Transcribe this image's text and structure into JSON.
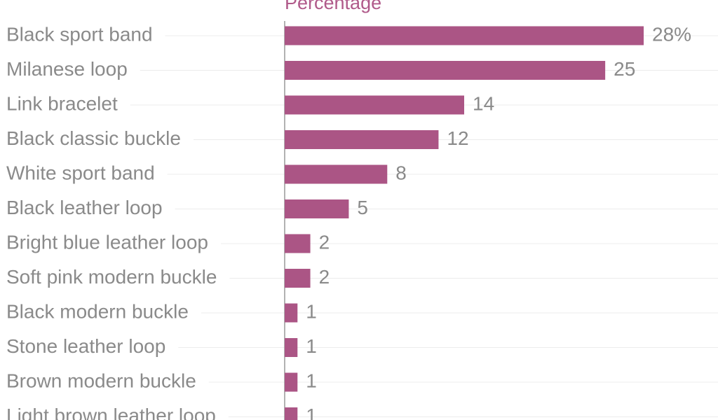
{
  "chart_data": {
    "type": "bar",
    "orientation": "horizontal",
    "title": "Percentage",
    "categories": [
      "Black sport band",
      "Milanese loop",
      "Link bracelet",
      "Black classic buckle",
      "White sport band",
      "Black leather loop",
      "Bright blue leather loop",
      "Soft pink modern buckle",
      "Black modern buckle",
      "Stone leather loop",
      "Brown modern buckle",
      "Light brown leather loop"
    ],
    "values": [
      28,
      25,
      14,
      12,
      8,
      5,
      2,
      2,
      1,
      1,
      1,
      1
    ],
    "value_labels": [
      "28%",
      "25",
      "14",
      "12",
      "8",
      "5",
      "2",
      "2",
      "1",
      "1",
      "1",
      "1"
    ],
    "color": "#ab5585"
  }
}
